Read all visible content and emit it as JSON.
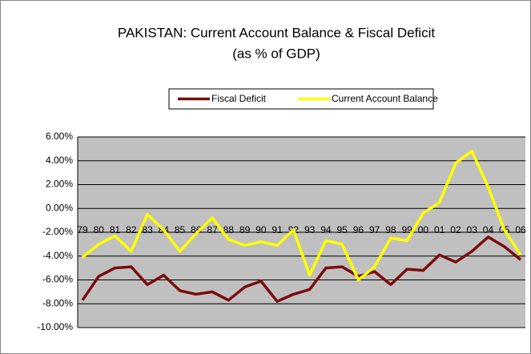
{
  "chart_data": {
    "type": "line",
    "title": "PAKISTAN: Current Account Balance & Fiscal Deficit",
    "subtitle": "(as % of GDP)",
    "categories": [
      "79",
      "80",
      "81",
      "82",
      "83",
      "84",
      "85",
      "86",
      "87",
      "88",
      "89",
      "90",
      "91",
      "92",
      "93",
      "94",
      "95",
      "96",
      "97",
      "98",
      "99",
      "00",
      "01",
      "02",
      "03",
      "04",
      "05",
      "06"
    ],
    "series": [
      {
        "name": "Fiscal Deficit",
        "color": "#7b0c0c",
        "values": [
          -7.7,
          -5.7,
          -5.0,
          -4.9,
          -6.4,
          -5.6,
          -6.9,
          -7.2,
          -7.0,
          -7.7,
          -6.6,
          -6.1,
          -7.8,
          -7.2,
          -6.8,
          -5.0,
          -4.9,
          -5.7,
          -5.3,
          -6.4,
          -5.1,
          -5.2,
          -3.9,
          -4.5,
          -3.6,
          -2.4,
          -3.2,
          -4.3
        ]
      },
      {
        "name": "Current Account Balance",
        "color": "#ffff00",
        "values": [
          -4.1,
          -3.0,
          -2.3,
          -3.6,
          -0.5,
          -1.8,
          -3.6,
          -2.1,
          -0.8,
          -2.6,
          -3.1,
          -2.8,
          -3.1,
          -1.8,
          -5.6,
          -2.7,
          -3.0,
          -6.0,
          -4.9,
          -2.5,
          -2.7,
          -0.4,
          0.5,
          3.8,
          4.8,
          1.8,
          -1.8,
          -3.9
        ]
      }
    ],
    "ylim": [
      -10,
      6
    ],
    "yticks": [
      {
        "value": 6,
        "label": "6.00%"
      },
      {
        "value": 4,
        "label": "4.00%"
      },
      {
        "value": 2,
        "label": "2.00%"
      },
      {
        "value": 0,
        "label": "0.00%"
      },
      {
        "value": -2,
        "label": "-2.00%"
      },
      {
        "value": -4,
        "label": "-4.00%"
      },
      {
        "value": -6,
        "label": "-6.00%"
      },
      {
        "value": -8,
        "label": "-8.00%"
      },
      {
        "value": -10,
        "label": "-10.00%"
      }
    ],
    "grid": true,
    "legend": "top"
  }
}
